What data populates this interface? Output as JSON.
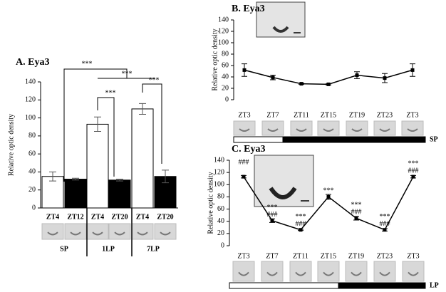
{
  "chart_data": [
    {
      "type": "bar",
      "title": "A. Eya3",
      "y_label": "Relative optic density",
      "categories": [
        "ZT4",
        "ZT12",
        "ZT4",
        "ZT20",
        "ZT4",
        "ZT20"
      ],
      "values": [
        35,
        32,
        93,
        31,
        110,
        35
      ],
      "errors": [
        5,
        1,
        8,
        1,
        6,
        7
      ],
      "colors": [
        "#ffffff",
        "#000000",
        "#ffffff",
        "#000000",
        "#ffffff",
        "#000000"
      ],
      "group_labels": [
        "SP",
        "1LP",
        "7LP"
      ],
      "annotations": [
        "***",
        "***",
        "***",
        "***"
      ],
      "ylim": [
        0,
        140
      ],
      "yticks": [
        0,
        20,
        40,
        60,
        80,
        100,
        120,
        140
      ]
    },
    {
      "type": "line",
      "title": "B. Eya3",
      "y_label": "Relative optic density",
      "categories": [
        "ZT3",
        "ZT7",
        "ZT11",
        "ZT15",
        "ZT19",
        "ZT23",
        "ZT3"
      ],
      "values": [
        52,
        39,
        28,
        27,
        43,
        38,
        52
      ],
      "errors": [
        11,
        4,
        1,
        1,
        6,
        8,
        11
      ],
      "color": "#000000",
      "photoperiod": "SP",
      "ylim": [
        0,
        140
      ],
      "yticks": [
        0,
        20,
        40,
        60,
        80,
        100,
        120,
        140
      ]
    },
    {
      "type": "line",
      "title": "C. Eya3",
      "y_label": "Relative optic density",
      "categories": [
        "ZT3",
        "ZT7",
        "ZT11",
        "ZT15",
        "ZT19",
        "ZT23",
        "ZT3"
      ],
      "values": [
        113,
        41,
        26,
        80,
        45,
        26,
        113
      ],
      "errors": [
        2,
        3,
        1,
        4,
        3,
        2,
        2
      ],
      "color": "#000000",
      "annotations": [
        [
          "###"
        ],
        [
          "***",
          "###"
        ],
        [
          "***",
          "###"
        ],
        [
          "***"
        ],
        [
          "***",
          "###"
        ],
        [
          "***",
          "###"
        ],
        [
          "***",
          "###"
        ]
      ],
      "photoperiod": "LP",
      "ylim": [
        0,
        140
      ],
      "yticks": [
        0,
        20,
        40,
        60,
        80,
        100,
        120,
        140
      ]
    }
  ]
}
